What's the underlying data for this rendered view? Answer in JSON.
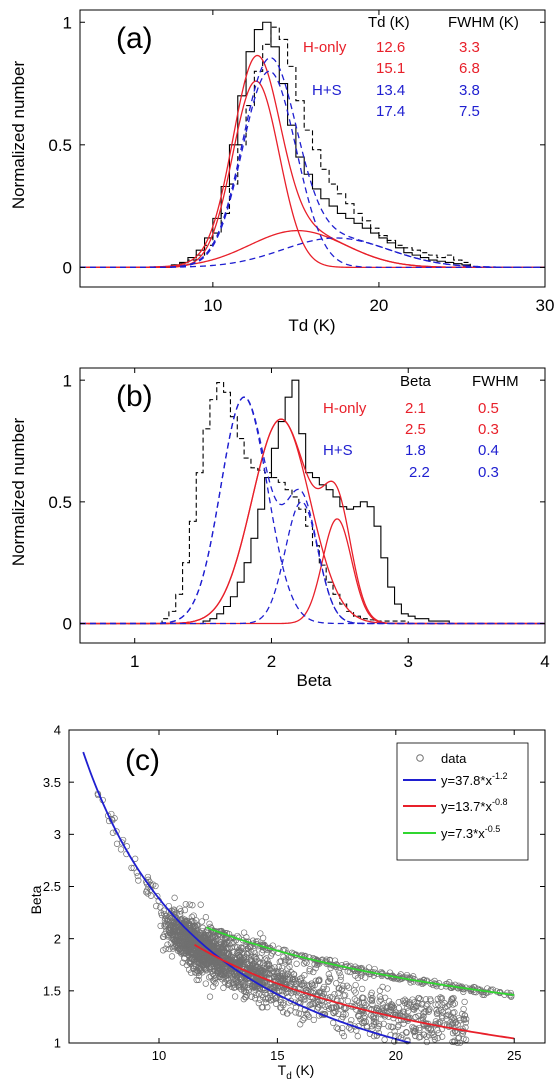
{
  "chart_data": [
    {
      "type": "line",
      "panel_label": "(a)",
      "xlabel": "Td (K)",
      "ylabel": "Normalized number",
      "xlim": [
        2,
        30
      ],
      "ylim": [
        -0.08,
        1.05
      ],
      "xticks": [
        10,
        20,
        30
      ],
      "yticks": [
        0,
        0.5,
        1
      ],
      "ytick_labels": [
        "0",
        "0.5",
        "1"
      ],
      "grid": false,
      "table": {
        "headers": [
          "Td (K)",
          "FWHM (K)"
        ],
        "groups": [
          {
            "name": "H-only",
            "color": "#e8202a",
            "rows": [
              [
                "12.6",
                "3.3"
              ],
              [
                "15.1",
                "6.8"
              ]
            ]
          },
          {
            "name": "H+S",
            "color": "#1f1fd0",
            "rows": [
              [
                "13.4",
                "3.8"
              ],
              [
                "17.4",
                "7.5"
              ]
            ]
          }
        ]
      },
      "histograms": [
        {
          "name": "H-only",
          "style": "solid",
          "color": "#000000",
          "bin_width": 0.5,
          "x_start": 7.5,
          "values": [
            0.01,
            0.02,
            0.04,
            0.07,
            0.12,
            0.2,
            0.33,
            0.5,
            0.7,
            0.88,
            0.97,
            1.0,
            0.9,
            0.75,
            0.58,
            0.45,
            0.38,
            0.32,
            0.28,
            0.25,
            0.22,
            0.2,
            0.18,
            0.16,
            0.14,
            0.12,
            0.1,
            0.08,
            0.06,
            0.05,
            0.04,
            0.03,
            0.025,
            0.02,
            0.015,
            0.01
          ]
        },
        {
          "name": "H+S",
          "style": "dashed",
          "color": "#000000",
          "bin_width": 0.5,
          "x_start": 7.5,
          "values": [
            0.01,
            0.015,
            0.03,
            0.05,
            0.09,
            0.14,
            0.22,
            0.34,
            0.5,
            0.66,
            0.8,
            0.91,
            0.98,
            0.93,
            0.82,
            0.68,
            0.56,
            0.48,
            0.4,
            0.34,
            0.3,
            0.26,
            0.22,
            0.19,
            0.16,
            0.13,
            0.11,
            0.09,
            0.08,
            0.07,
            0.06,
            0.05,
            0.04,
            0.05,
            0.03,
            0.02
          ]
        }
      ],
      "gaussians": [
        {
          "name": "H-only",
          "style": "solid",
          "color": "#e8202a",
          "components": [
            {
              "amp": 0.76,
              "mu": 12.6,
              "fwhm": 3.3
            },
            {
              "amp": 0.15,
              "mu": 15.1,
              "fwhm": 6.8
            }
          ]
        },
        {
          "name": "H+S",
          "style": "dashed",
          "color": "#1f1fd0",
          "components": [
            {
              "amp": 0.8,
              "mu": 13.4,
              "fwhm": 3.8
            },
            {
              "amp": 0.12,
              "mu": 17.4,
              "fwhm": 7.5
            }
          ]
        }
      ]
    },
    {
      "type": "line",
      "panel_label": "(b)",
      "xlabel": "Beta",
      "ylabel": "Normalized number",
      "xlim": [
        0.6,
        4
      ],
      "ylim": [
        -0.08,
        1.05
      ],
      "xticks": [
        1,
        2,
        3,
        4
      ],
      "yticks": [
        0,
        0.5,
        1
      ],
      "ytick_labels": [
        "0",
        "0.5",
        "1"
      ],
      "grid": false,
      "table": {
        "headers": [
          "Beta",
          "FWHM"
        ],
        "groups": [
          {
            "name": "H-only",
            "color": "#e8202a",
            "rows": [
              [
                "2.1",
                "0.5"
              ],
              [
                "2.5",
                "0.3"
              ]
            ]
          },
          {
            "name": "H+S",
            "color": "#1f1fd0",
            "rows": [
              [
                "1.8",
                "0.4"
              ],
              [
                "2.2",
                "0.3"
              ]
            ]
          }
        ]
      },
      "histograms": [
        {
          "name": "H-only",
          "style": "solid",
          "color": "#000000",
          "bin_width": 0.05,
          "x_start": 1.5,
          "values": [
            0.01,
            0.02,
            0.04,
            0.07,
            0.11,
            0.17,
            0.25,
            0.35,
            0.47,
            0.6,
            0.72,
            0.83,
            0.93,
            1.0,
            0.78,
            0.62,
            0.6,
            0.57,
            0.55,
            0.52,
            0.48,
            0.47,
            0.48,
            0.5,
            0.48,
            0.4,
            0.27,
            0.15,
            0.08,
            0.04,
            0.03,
            0.02,
            0.02,
            0.01,
            0.01,
            0.01
          ]
        },
        {
          "name": "H+S",
          "style": "dashed",
          "color": "#000000",
          "bin_width": 0.05,
          "x_start": 1.2,
          "values": [
            0.02,
            0.05,
            0.12,
            0.25,
            0.42,
            0.62,
            0.8,
            0.92,
            0.99,
            0.95,
            0.85,
            0.76,
            0.68,
            0.64,
            0.63,
            0.62,
            0.6,
            0.58,
            0.55,
            0.52,
            0.47,
            0.4,
            0.32,
            0.24,
            0.17,
            0.12,
            0.08,
            0.05,
            0.03,
            0.02,
            0.015,
            0.01,
            0.01,
            0.01,
            0.01,
            0.01
          ]
        }
      ],
      "gaussians": [
        {
          "name": "H-only",
          "style": "solid",
          "color": "#e8202a",
          "components": [
            {
              "amp": 0.84,
              "mu": 2.07,
              "fwhm": 0.5
            },
            {
              "amp": 0.43,
              "mu": 2.48,
              "fwhm": 0.25
            }
          ]
        },
        {
          "name": "H+S",
          "style": "dashed",
          "color": "#1f1fd0",
          "components": [
            {
              "amp": 0.93,
              "mu": 1.8,
              "fwhm": 0.4
            },
            {
              "amp": 0.5,
              "mu": 2.22,
              "fwhm": 0.28
            }
          ]
        }
      ]
    },
    {
      "type": "scatter",
      "panel_label": "(c)",
      "xlabel_main": "T",
      "xlabel_sub": "d",
      "xlabel_unit": " (K)",
      "ylabel": "Beta",
      "xlim": [
        6.2,
        26.3
      ],
      "ylim": [
        1,
        4
      ],
      "xticks": [
        10,
        15,
        20,
        25
      ],
      "yticks": [
        1,
        1.5,
        2,
        2.5,
        3,
        3.5,
        4
      ],
      "ytick_labels": [
        "1",
        "1.5",
        "2",
        "2.5",
        "3",
        "3.5",
        "4"
      ],
      "grid": false,
      "legend_position": "top-right",
      "scatter_color": "#707070",
      "series": [
        {
          "name": "data",
          "kind": "points",
          "color": "#707070"
        },
        {
          "name": "y=37.8*x",
          "exp": "-1.2",
          "coef": 37.8,
          "power": -1.2,
          "color": "#1f1fd0",
          "x_range": [
            6.8,
            22.5
          ]
        },
        {
          "name": "y=13.7*x",
          "exp": "-0.8",
          "coef": 13.7,
          "power": -0.8,
          "color": "#e8202a",
          "x_range": [
            11.5,
            25
          ]
        },
        {
          "name": "y=7.3*x",
          "exp": "-0.5",
          "coef": 7.3,
          "power": -0.5,
          "color": "#30d630",
          "x_range": [
            12,
            25
          ]
        }
      ]
    }
  ]
}
